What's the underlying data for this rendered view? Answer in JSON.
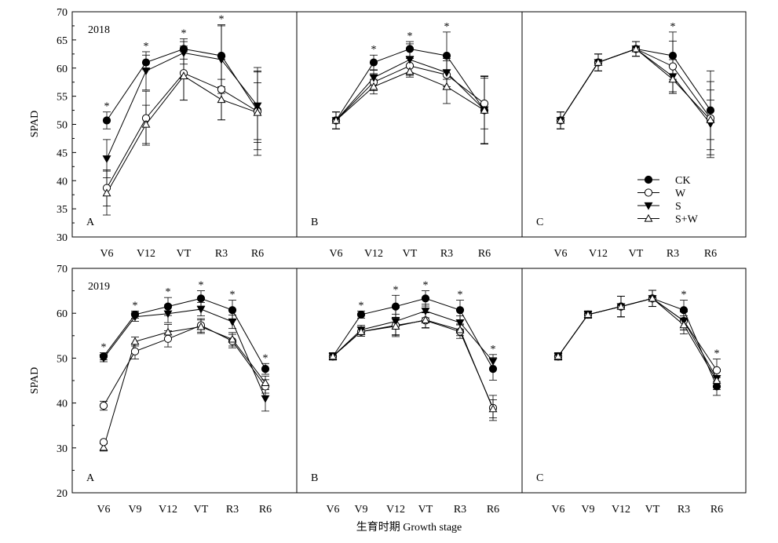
{
  "figure": {
    "xlabel": "生育时期 Growth stage",
    "ylabel": "SPAD",
    "legend": [
      {
        "name": "CK",
        "marker": "circle-filled"
      },
      {
        "name": "W",
        "marker": "circle-open"
      },
      {
        "name": "S",
        "marker": "triangle-down-filled"
      },
      {
        "name": "S+W",
        "marker": "triangle-up-open"
      }
    ],
    "legend_panel": "row-0-panel-2",
    "legend_position": "lower-right"
  },
  "chart_data": [
    {
      "type": "line",
      "year": "2018",
      "panel": "A",
      "row": 0,
      "col": 0,
      "categories": [
        "V6",
        "V12",
        "VT",
        "R3",
        "R6"
      ],
      "ylim": [
        30,
        70
      ],
      "yticks": [
        30,
        35,
        40,
        45,
        50,
        55,
        60,
        65,
        70
      ],
      "series": [
        {
          "name": "CK",
          "values": [
            50.7,
            61.0,
            63.4,
            62.2,
            52.5
          ],
          "errors": [
            1.5,
            1.3,
            1.8,
            5.5,
            7.0
          ]
        },
        {
          "name": "W",
          "values": [
            38.7,
            51.1,
            59.1,
            56.2,
            52.3
          ],
          "errors": [
            3.2,
            4.8,
            4.8,
            5.4,
            7.8
          ]
        },
        {
          "name": "S",
          "values": [
            43.9,
            59.5,
            62.7,
            61.5,
            53.3
          ],
          "errors": [
            3.4,
            3.4,
            2.0,
            6.0,
            6.0
          ]
        },
        {
          "name": "S+W",
          "values": [
            37.8,
            50.0,
            58.6,
            54.4,
            52.1
          ],
          "errors": [
            3.9,
            3.4,
            4.3,
            3.6,
            5.3
          ]
        }
      ],
      "significance": [
        "*",
        "*",
        "*",
        "*",
        ""
      ]
    },
    {
      "type": "line",
      "panel": "B",
      "row": 0,
      "col": 1,
      "categories": [
        "V6",
        "V12",
        "VT",
        "R3",
        "R6"
      ],
      "ylim": [
        30,
        70
      ],
      "series": [
        {
          "name": "CK",
          "values": [
            50.7,
            61.0,
            63.4,
            62.2,
            52.5
          ],
          "errors": [
            1.5,
            1.3,
            1.3,
            4.2,
            6.0
          ]
        },
        {
          "name": "W",
          "values": [
            50.7,
            57.5,
            60.4,
            58.8,
            53.7
          ],
          "errors": [
            1.5,
            1.5,
            1.3,
            2.5,
            4.5
          ]
        },
        {
          "name": "S",
          "values": [
            50.7,
            58.3,
            61.5,
            59.2,
            52.6
          ],
          "errors": [
            1.5,
            1.3,
            2.8,
            2.5,
            6.0
          ]
        },
        {
          "name": "S+W",
          "values": [
            50.7,
            56.7,
            59.4,
            56.7,
            52.5
          ],
          "errors": [
            1.5,
            1.3,
            1.0,
            3.0,
            6.0
          ]
        }
      ],
      "significance": [
        "",
        "*",
        "*",
        "*",
        ""
      ]
    },
    {
      "type": "line",
      "panel": "C",
      "row": 0,
      "col": 2,
      "categories": [
        "V6",
        "V12",
        "VT",
        "R3",
        "R6"
      ],
      "ylim": [
        30,
        70
      ],
      "series": [
        {
          "name": "CK",
          "values": [
            50.7,
            61.0,
            63.4,
            62.2,
            52.5
          ],
          "errors": [
            1.5,
            1.5,
            1.3,
            4.2,
            7.0
          ]
        },
        {
          "name": "W",
          "values": [
            50.7,
            61.0,
            63.4,
            60.3,
            51.1
          ],
          "errors": [
            1.5,
            1.5,
            1.3,
            4.5,
            6.5
          ]
        },
        {
          "name": "S",
          "values": [
            50.7,
            61.0,
            63.4,
            58.5,
            50.1
          ],
          "errors": [
            1.5,
            1.5,
            1.3,
            3.0,
            6.0
          ]
        },
        {
          "name": "S+W",
          "values": [
            50.7,
            61.0,
            63.4,
            58.0,
            50.8
          ],
          "errors": [
            1.5,
            1.5,
            1.3,
            2.5,
            3.5
          ]
        }
      ],
      "significance": [
        "",
        "",
        "",
        "*",
        ""
      ]
    },
    {
      "type": "line",
      "year": "2019",
      "panel": "A",
      "row": 1,
      "col": 0,
      "categories": [
        "V6",
        "V9",
        "V12",
        "VT",
        "R3",
        "R6"
      ],
      "ylim": [
        20,
        70
      ],
      "yticks": [
        20,
        30,
        40,
        50,
        60,
        70
      ],
      "series": [
        {
          "name": "CK",
          "values": [
            50.4,
            59.7,
            61.5,
            63.3,
            60.7,
            47.6
          ],
          "errors": [
            0.8,
            0.8,
            2.0,
            1.7,
            2.2,
            1.2
          ]
        },
        {
          "name": "W",
          "values": [
            39.4,
            51.5,
            54.3,
            57.3,
            53.8,
            43.7
          ],
          "errors": [
            1.0,
            1.7,
            1.8,
            1.5,
            1.5,
            1.5
          ]
        },
        {
          "name": "S",
          "values": [
            50.0,
            59.2,
            59.9,
            60.9,
            58.1,
            41.0
          ],
          "errors": [
            0.8,
            1.0,
            2.0,
            1.5,
            1.5,
            2.8
          ]
        },
        {
          "name": "S+W",
          "values": [
            30.1,
            53.7,
            55.8,
            57.0,
            54.2,
            44.5
          ],
          "errors": [
            0.8,
            1.0,
            1.7,
            1.5,
            1.5,
            1.5
          ]
        }
      ],
      "extra_points": [
        {
          "x_index": 0,
          "value": 31.3,
          "marker": "circle-open"
        }
      ],
      "significance": [
        "*",
        "*",
        "*",
        "*",
        "*",
        "*"
      ]
    },
    {
      "type": "line",
      "panel": "B",
      "row": 1,
      "col": 1,
      "categories": [
        "V6",
        "V9",
        "V12",
        "VT",
        "R3",
        "R6"
      ],
      "ylim": [
        20,
        70
      ],
      "series": [
        {
          "name": "CK",
          "values": [
            50.4,
            59.7,
            61.5,
            63.3,
            60.7,
            47.6
          ],
          "errors": [
            0.8,
            0.8,
            2.5,
            1.7,
            2.2,
            2.5
          ]
        },
        {
          "name": "W",
          "values": [
            50.4,
            55.9,
            57.3,
            58.4,
            55.9,
            38.9
          ],
          "errors": [
            0.8,
            1.0,
            2.5,
            1.7,
            1.5,
            2.8
          ]
        },
        {
          "name": "S",
          "values": [
            50.4,
            56.3,
            58.2,
            60.5,
            57.9,
            49.3
          ],
          "errors": [
            0.8,
            1.0,
            3.0,
            1.5,
            1.5,
            1.5
          ]
        },
        {
          "name": "S+W",
          "values": [
            50.4,
            55.9,
            57.1,
            58.5,
            56.3,
            38.7
          ],
          "errors": [
            0.8,
            1.0,
            2.0,
            1.7,
            1.3,
            2.0
          ]
        }
      ],
      "significance": [
        "",
        "*",
        "*",
        "*",
        "*",
        "*"
      ]
    },
    {
      "type": "line",
      "panel": "C",
      "row": 1,
      "col": 2,
      "categories": [
        "V6",
        "V9",
        "V12",
        "VT",
        "R3",
        "R6"
      ],
      "ylim": [
        20,
        70
      ],
      "series": [
        {
          "name": "CK",
          "values": [
            50.4,
            59.7,
            61.5,
            63.3,
            60.7,
            43.7
          ],
          "errors": [
            0.8,
            0.8,
            2.3,
            1.8,
            2.2,
            2.0
          ]
        },
        {
          "name": "W",
          "values": [
            50.4,
            59.7,
            61.5,
            63.3,
            58.3,
            47.3
          ],
          "errors": [
            0.8,
            0.8,
            2.3,
            1.8,
            2.0,
            2.5
          ]
        },
        {
          "name": "S",
          "values": [
            50.4,
            59.7,
            61.5,
            63.3,
            58.3,
            45.5
          ],
          "errors": [
            0.8,
            0.8,
            2.3,
            1.8,
            2.0,
            2.0
          ]
        },
        {
          "name": "S+W",
          "values": [
            50.4,
            59.7,
            61.5,
            63.3,
            57.4,
            45.0
          ],
          "errors": [
            0.8,
            0.8,
            2.3,
            1.8,
            2.0,
            2.0
          ]
        }
      ],
      "significance": [
        "",
        "",
        "",
        "",
        "*",
        "*"
      ]
    }
  ]
}
